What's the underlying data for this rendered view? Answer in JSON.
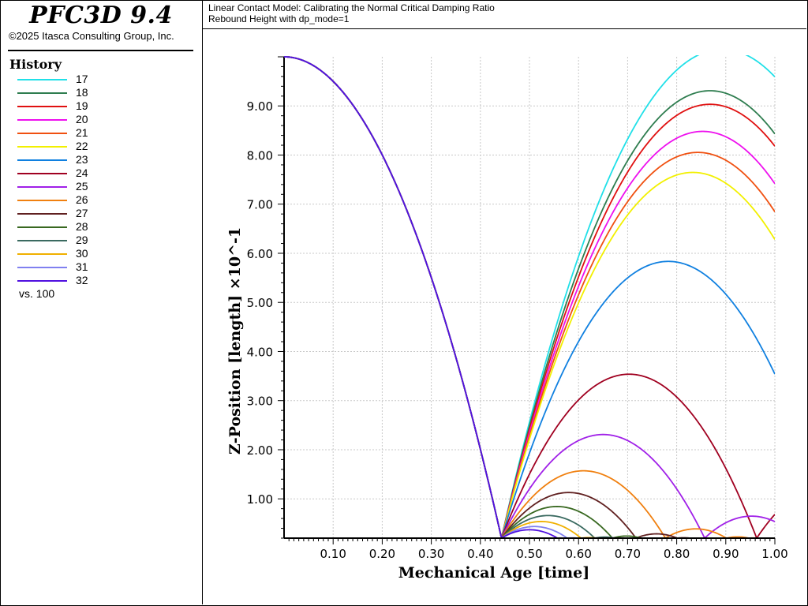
{
  "app": {
    "title": "PFC3D 9.4",
    "copyright": "©2025 Itasca Consulting Group, Inc."
  },
  "plot_header": {
    "line1": "Linear Contact Model: Calibrating the Normal Critical Damping Ratio",
    "line2": "Rebound Height with dp_mode=1"
  },
  "history": {
    "title": "History",
    "vs_label": "vs. 100",
    "items": [
      {
        "label": "17",
        "color": "#20e0e8"
      },
      {
        "label": "18",
        "color": "#2e7d4f"
      },
      {
        "label": "19",
        "color": "#e01010"
      },
      {
        "label": "20",
        "color": "#ee10ee"
      },
      {
        "label": "21",
        "color": "#f05010"
      },
      {
        "label": "22",
        "color": "#f2f000"
      },
      {
        "label": "23",
        "color": "#1080e0"
      },
      {
        "label": "24",
        "color": "#a00020"
      },
      {
        "label": "25",
        "color": "#a020e8"
      },
      {
        "label": "26",
        "color": "#f08010"
      },
      {
        "label": "27",
        "color": "#602020"
      },
      {
        "label": "28",
        "color": "#386820"
      },
      {
        "label": "29",
        "color": "#3a6a60"
      },
      {
        "label": "30",
        "color": "#f0b000"
      },
      {
        "label": "31",
        "color": "#8080f0"
      },
      {
        "label": "32",
        "color": "#5010e0"
      }
    ]
  },
  "chart_data": {
    "type": "line",
    "xlabel": "Mechanical Age [time]",
    "ylabel": "Z-Position [length] ×10^-1",
    "xlim": [
      0,
      1.0
    ],
    "ylim": [
      0.2,
      10.0
    ],
    "xticks": [
      "0.10",
      "0.20",
      "0.30",
      "0.40",
      "0.50",
      "0.60",
      "0.70",
      "0.80",
      "0.90",
      "1.00"
    ],
    "yticks": [
      "1.00",
      "2.00",
      "3.00",
      "4.00",
      "5.00",
      "6.00",
      "7.00",
      "8.00",
      "9.00"
    ],
    "grid": true,
    "initial_drop": {
      "y0": 10.0,
      "impact_time": 0.443,
      "floor": 0.2
    },
    "series": [
      {
        "name": "17",
        "rebound_peak": 10.0,
        "peak_time": 0.893
      },
      {
        "name": "18",
        "rebound_peak": 9.4,
        "peak_time": 0.868
      },
      {
        "name": "19",
        "rebound_peak": 8.85,
        "peak_time": 0.868
      },
      {
        "name": "20",
        "rebound_peak": 8.37,
        "peak_time": 0.853
      },
      {
        "name": "21",
        "rebound_peak": 7.92,
        "peak_time": 0.843
      },
      {
        "name": "22",
        "rebound_peak": 7.5,
        "peak_time": 0.833
      },
      {
        "name": "23",
        "rebound_peak": 5.7,
        "peak_time": 0.783
      },
      {
        "name": "24",
        "rebound_peak": 3.5,
        "peak_time": 0.703
      },
      {
        "name": "25",
        "rebound_peak": 2.28,
        "peak_time": 0.65
      },
      {
        "name": "26",
        "rebound_peak": 1.55,
        "peak_time": 0.61
      },
      {
        "name": "27",
        "rebound_peak": 1.12,
        "peak_time": 0.58
      },
      {
        "name": "28",
        "rebound_peak": 0.85,
        "peak_time": 0.556
      },
      {
        "name": "29",
        "rebound_peak": 0.67,
        "peak_time": 0.538
      },
      {
        "name": "30",
        "rebound_peak": 0.55,
        "peak_time": 0.524
      },
      {
        "name": "31",
        "rebound_peak": 0.45,
        "peak_time": 0.51
      },
      {
        "name": "32",
        "rebound_peak": 0.38,
        "peak_time": 0.5
      }
    ]
  }
}
